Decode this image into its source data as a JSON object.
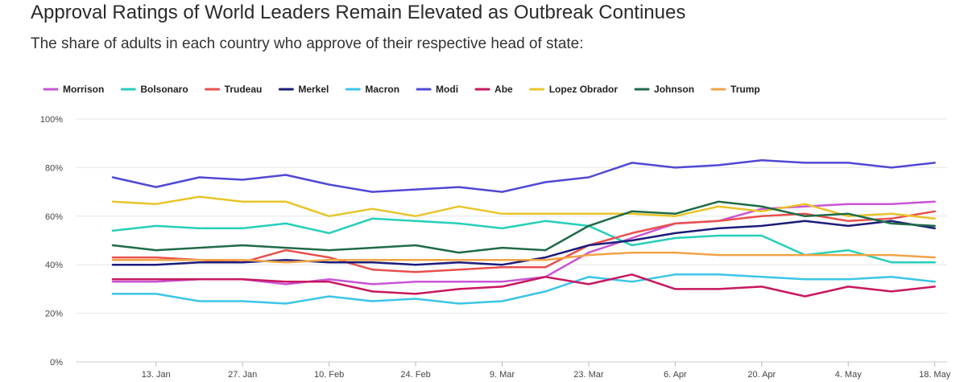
{
  "header": {
    "title": "Approval Ratings of World Leaders Remain Elevated as Outbreak Continues",
    "subtitle": "The share of adults in each country who approve of their respective head of state:"
  },
  "chart_data": {
    "type": "line",
    "title": "Approval Ratings of World Leaders Remain Elevated as Outbreak Continues",
    "subtitle": "The share of adults in each country who approve of their respective head of state:",
    "xlabel": "",
    "ylabel": "",
    "ylim": [
      0,
      100
    ],
    "y_ticks": [
      "0%",
      "20%",
      "40%",
      "60%",
      "80%",
      "100%"
    ],
    "x_tick_labels": [
      "13. Jan",
      "27. Jan",
      "10. Feb",
      "24. Feb",
      "9. Mar",
      "23. Mar",
      "6. Apr",
      "20. Apr",
      "4. May",
      "18. May"
    ],
    "x_start_day": 6,
    "x_step_days": 7,
    "x_tick_days": [
      13,
      27,
      41,
      55,
      69,
      83,
      97,
      111,
      125,
      139
    ],
    "x_range_days": [
      0,
      141
    ],
    "gridlines": true,
    "legend_position": "top",
    "series": [
      {
        "name": "Morrison",
        "color": "#c954d6",
        "values": [
          33,
          33,
          34,
          34,
          32,
          34,
          32,
          33,
          33,
          33,
          35,
          45,
          51,
          57,
          58,
          63,
          64,
          65,
          65,
          66
        ]
      },
      {
        "name": "Bolsonaro",
        "color": "#25cfb9",
        "values": [
          54,
          56,
          55,
          55,
          57,
          53,
          59,
          58,
          57,
          55,
          58,
          56,
          48,
          51,
          52,
          52,
          44,
          46,
          41,
          41
        ]
      },
      {
        "name": "Trudeau",
        "color": "#e8504e",
        "values": [
          43,
          43,
          42,
          41,
          46,
          43,
          38,
          37,
          38,
          39,
          39,
          48,
          53,
          57,
          58,
          60,
          61,
          58,
          59,
          62
        ]
      },
      {
        "name": "Merkel",
        "color": "#1c1c7a",
        "values": [
          40,
          40,
          41,
          41,
          42,
          41,
          41,
          40,
          41,
          40,
          43,
          48,
          50,
          53,
          55,
          56,
          58,
          56,
          58,
          55
        ]
      },
      {
        "name": "Macron",
        "color": "#3cc5e8",
        "values": [
          28,
          28,
          25,
          25,
          24,
          27,
          25,
          26,
          24,
          25,
          29,
          35,
          33,
          36,
          36,
          35,
          34,
          34,
          35,
          33
        ]
      },
      {
        "name": "Modi",
        "color": "#5048d4",
        "values": [
          76,
          72,
          76,
          75,
          77,
          73,
          70,
          71,
          72,
          70,
          74,
          76,
          82,
          80,
          81,
          83,
          82,
          82,
          80,
          82
        ]
      },
      {
        "name": "Abe",
        "color": "#c8175f",
        "values": [
          34,
          34,
          34,
          34,
          33,
          33,
          29,
          28,
          30,
          31,
          35,
          32,
          36,
          30,
          30,
          31,
          27,
          31,
          29,
          31
        ]
      },
      {
        "name": "Lopez Obrador",
        "color": "#e8c42a",
        "values": [
          66,
          65,
          68,
          66,
          66,
          60,
          63,
          60,
          64,
          61,
          61,
          61,
          61,
          60,
          64,
          62,
          65,
          60,
          61,
          59
        ]
      },
      {
        "name": "Johnson",
        "color": "#1f6b47",
        "values": [
          48,
          46,
          47,
          48,
          47,
          46,
          47,
          48,
          45,
          47,
          46,
          56,
          62,
          61,
          66,
          64,
          60,
          61,
          57,
          56
        ]
      },
      {
        "name": "Trump",
        "color": "#f2a346",
        "values": [
          42,
          42,
          42,
          42,
          41,
          42,
          42,
          42,
          42,
          42,
          42,
          44,
          45,
          45,
          44,
          44,
          44,
          44,
          44,
          43
        ]
      }
    ]
  }
}
